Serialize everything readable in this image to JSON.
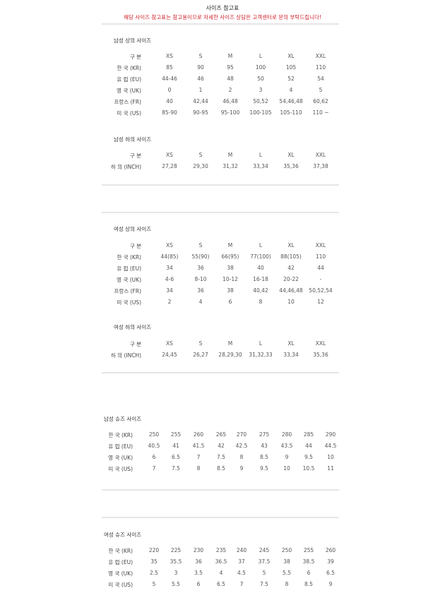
{
  "header": {
    "title": "사이즈 참고표",
    "notice": "해당 사이즈 참고표는 참고용이므로 자세한 사이즈 상담은 고객센터로 문의 부탁드립니다!",
    "notice_color": "#d0202a"
  },
  "tables": [
    {
      "title": "남성 상의 사이즈",
      "rows": [
        {
          "label": "구 분",
          "values": [
            "XS",
            "S",
            "M",
            "L",
            "XL",
            "XXL"
          ]
        },
        {
          "label": "한 국 (KR)",
          "values": [
            "85",
            "90",
            "95",
            "100",
            "105",
            "110"
          ]
        },
        {
          "label": "유 럽 (EU)",
          "values": [
            "44-46",
            "46",
            "48",
            "50",
            "52",
            "54"
          ]
        },
        {
          "label": "영 국 (UK)",
          "values": [
            "0",
            "1",
            "2",
            "3",
            "4",
            "5"
          ]
        },
        {
          "label": "프랑스 (FR)",
          "values": [
            "40",
            "42,44",
            "46,48",
            "50,52",
            "54,46,48",
            "60,62"
          ]
        },
        {
          "label": "미 국 (US)",
          "values": [
            "85-90",
            "90-95",
            "95-100",
            "100-105",
            "105-110",
            "110 ~"
          ]
        }
      ]
    },
    {
      "title": "남성 하의 사이즈",
      "rows": [
        {
          "label": "구 분",
          "values": [
            "XS",
            "S",
            "M",
            "L",
            "XL",
            "XXL"
          ]
        },
        {
          "label": "하 의 (INCH)",
          "values": [
            "27,28",
            "29,30",
            "31,32",
            "33,34",
            "35,36",
            "37,38"
          ]
        }
      ]
    },
    {
      "title": "여성 상의 사이즈",
      "rows": [
        {
          "label": "구 분",
          "values": [
            "XS",
            "S",
            "M",
            "L",
            "XL",
            "XXL"
          ]
        },
        {
          "label": "한 국 (KR)",
          "values": [
            "44(85)",
            "55(90)",
            "66(95)",
            "77(100)",
            "88(105)",
            "110"
          ]
        },
        {
          "label": "유 럽 (EU)",
          "values": [
            "34",
            "36",
            "38",
            "40",
            "42",
            "44"
          ]
        },
        {
          "label": "영 국 (UK)",
          "values": [
            "4-6",
            "8-10",
            "10-12",
            "16-18",
            "20-22",
            "-"
          ]
        },
        {
          "label": "프랑스 (FR)",
          "values": [
            "34",
            "36",
            "38",
            "40,42",
            "44,46,48",
            "50,52,54"
          ]
        },
        {
          "label": "미 국 (US)",
          "values": [
            "2",
            "4",
            "6",
            "8",
            "10",
            "12"
          ]
        }
      ]
    },
    {
      "title": "여성 하의 사이즈",
      "rows": [
        {
          "label": "구 분",
          "values": [
            "XS",
            "S",
            "M",
            "L",
            "XL",
            "XXL"
          ]
        },
        {
          "label": "하 의 (INCH)",
          "values": [
            "24,45",
            "26,27",
            "28,29,30",
            "31,32,33",
            "33,34",
            "35,36"
          ]
        }
      ]
    },
    {
      "title": "남성 슈즈 사이즈",
      "rows": [
        {
          "label": "한 국 (KR)",
          "values": [
            "250",
            "255",
            "260",
            "265",
            "270",
            "275",
            "280",
            "285",
            "290"
          ]
        },
        {
          "label": "유 럽 (EU)",
          "values": [
            "40.5",
            "41",
            "41.5",
            "42",
            "42.5",
            "43",
            "43.5",
            "44",
            "44.5"
          ]
        },
        {
          "label": "영 국 (UK)",
          "values": [
            "6",
            "6.5",
            "7",
            "7.5",
            "8",
            "8.5",
            "9",
            "9.5",
            "10"
          ]
        },
        {
          "label": "미 국 (US)",
          "values": [
            "7",
            "7.5",
            "8",
            "8.5",
            "9",
            "9.5",
            "10",
            "10.5",
            "11"
          ]
        }
      ]
    },
    {
      "title": "여성 슈즈 사이즈",
      "rows": [
        {
          "label": "한 국 (KR)",
          "values": [
            "220",
            "225",
            "230",
            "235",
            "240",
            "245",
            "250",
            "255",
            "260"
          ]
        },
        {
          "label": "유 럽 (EU)",
          "values": [
            "35",
            "35.5",
            "36",
            "36.5",
            "37",
            "37.5",
            "38",
            "38.5",
            "39"
          ]
        },
        {
          "label": "영 국 (UK)",
          "values": [
            "2.5",
            "3",
            "3.5",
            "4",
            "4.5",
            "5",
            "5.5",
            "6",
            "6.5"
          ]
        },
        {
          "label": "미 국 (US)",
          "values": [
            "5",
            "5.5",
            "6",
            "6.5",
            "7",
            "7.5",
            "8",
            "8.5",
            "9"
          ]
        }
      ]
    }
  ]
}
